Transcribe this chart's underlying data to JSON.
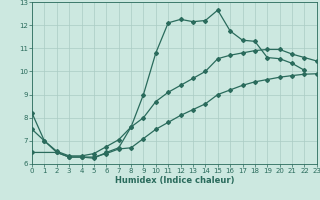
{
  "xlabel": "Humidex (Indice chaleur)",
  "xlim": [
    0,
    23
  ],
  "ylim": [
    6,
    13
  ],
  "yticks": [
    6,
    7,
    8,
    9,
    10,
    11,
    12,
    13
  ],
  "xticks": [
    0,
    1,
    2,
    3,
    4,
    5,
    6,
    7,
    8,
    9,
    10,
    11,
    12,
    13,
    14,
    15,
    16,
    17,
    18,
    19,
    20,
    21,
    22,
    23
  ],
  "bg_color": "#cce8e0",
  "line_color": "#2a6b5c",
  "grid_color": "#aaccc4",
  "line1_x": [
    0,
    1,
    2,
    3,
    4,
    5,
    6,
    7,
    8,
    9,
    10,
    11,
    12,
    13,
    14,
    15,
    16,
    17,
    18,
    19,
    20,
    21,
    22
  ],
  "line1_y": [
    8.2,
    7.0,
    6.5,
    6.3,
    6.3,
    6.25,
    6.5,
    6.7,
    7.6,
    9.0,
    10.8,
    12.1,
    12.25,
    12.15,
    12.2,
    12.65,
    11.75,
    11.35,
    11.3,
    10.6,
    10.55,
    10.35,
    10.05
  ],
  "line2_x": [
    0,
    2,
    3,
    4,
    5,
    6,
    7,
    8,
    9,
    10,
    11,
    12,
    13,
    14,
    15,
    16,
    17,
    18,
    19,
    20,
    21,
    22,
    23
  ],
  "line2_y": [
    6.5,
    6.5,
    6.3,
    6.3,
    6.3,
    6.45,
    6.65,
    6.7,
    7.1,
    7.5,
    7.8,
    8.1,
    8.35,
    8.6,
    9.0,
    9.2,
    9.4,
    9.55,
    9.65,
    9.75,
    9.82,
    9.88,
    9.9
  ],
  "line3_x": [
    0,
    1,
    2,
    3,
    4,
    5,
    6,
    7,
    8,
    9,
    10,
    11,
    12,
    13,
    14,
    15,
    16,
    17,
    18,
    19,
    20,
    21,
    22,
    23
  ],
  "line3_y": [
    7.5,
    7.0,
    6.55,
    6.35,
    6.35,
    6.45,
    6.75,
    7.05,
    7.6,
    8.0,
    8.7,
    9.1,
    9.4,
    9.7,
    10.0,
    10.55,
    10.7,
    10.8,
    10.9,
    10.95,
    10.95,
    10.75,
    10.6,
    10.45
  ]
}
